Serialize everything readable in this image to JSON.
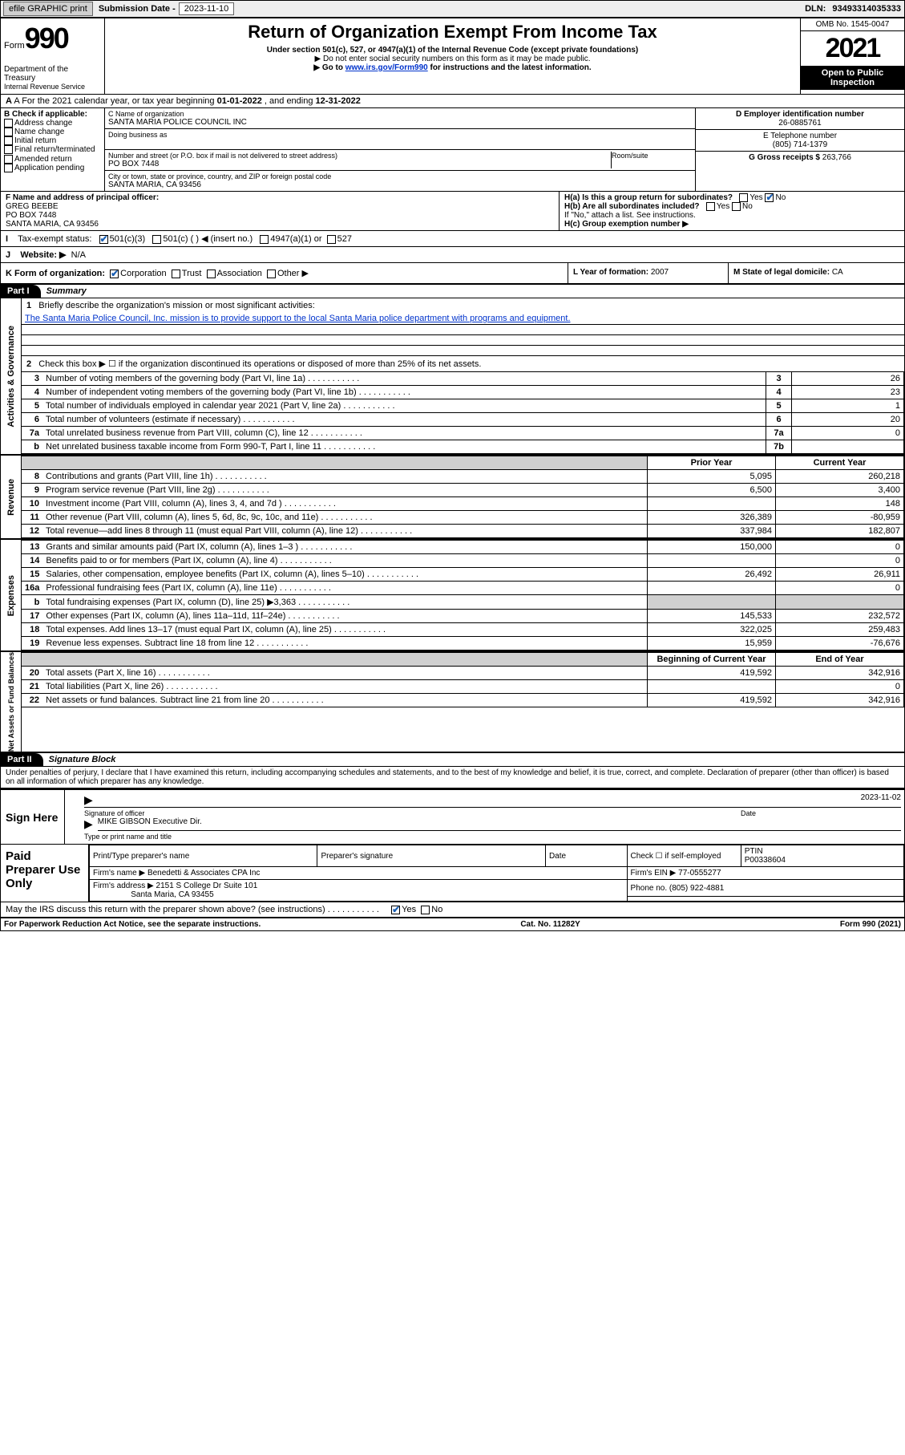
{
  "topbar": {
    "efile_label": "efile GRAPHIC print",
    "sub_date_label": "Submission Date - ",
    "sub_date": "2023-11-10",
    "dln_label": "DLN: ",
    "dln": "93493314035333"
  },
  "header": {
    "form_word": "Form",
    "form_num": "990",
    "title": "Return of Organization Exempt From Income Tax",
    "subtitle": "Under section 501(c), 527, or 4947(a)(1) of the Internal Revenue Code (except private foundations)",
    "note1": "▶ Do not enter social security numbers on this form as it may be made public.",
    "note2_pre": "▶ Go to ",
    "note2_link": "www.irs.gov/Form990",
    "note2_post": " for instructions and the latest information.",
    "omb": "OMB No. 1545-0047",
    "year": "2021",
    "open": "Open to Public Inspection",
    "dept": "Department of the Treasury",
    "irs": "Internal Revenue Service"
  },
  "a_line": {
    "pre": "A For the 2021 calendar year, or tax year beginning ",
    "begin": "01-01-2022",
    "mid": "   , and ending ",
    "end": "12-31-2022"
  },
  "b": {
    "label": "B Check if applicable:",
    "opts": [
      "Address change",
      "Name change",
      "Initial return",
      "Final return/terminated",
      "Amended return",
      "Application pending"
    ]
  },
  "c": {
    "name_label": "C Name of organization",
    "name": "SANTA MARIA POLICE COUNCIL INC",
    "dba_label": "Doing business as",
    "street_label": "Number and street (or P.O. box if mail is not delivered to street address)",
    "room_label": "Room/suite",
    "street": "PO BOX 7448",
    "city_label": "City or town, state or province, country, and ZIP or foreign postal code",
    "city": "SANTA MARIA, CA  93456"
  },
  "d": {
    "ein_label": "D Employer identification number",
    "ein": "26-0885761",
    "phone_label": "E Telephone number",
    "phone": "(805) 714-1379",
    "gross_label": "G Gross receipts $ ",
    "gross": "263,766"
  },
  "f": {
    "label": "F  Name and address of principal officer:",
    "name": "GREG BEEBE",
    "street": "PO BOX 7448",
    "city": "SANTA MARIA, CA  93456"
  },
  "h": {
    "a": "H(a)  Is this a group return for subordinates?",
    "b": "H(b)  Are all subordinates included?",
    "note": "If \"No,\" attach a list. See instructions.",
    "c": "H(c)  Group exemption number ▶",
    "yes": "Yes",
    "no": "No"
  },
  "i": {
    "label": "Tax-exempt status:",
    "o1": "501(c)(3)",
    "o2": "501(c) (   ) ◀ (insert no.)",
    "o3": "4947(a)(1) or",
    "o4": "527"
  },
  "j": {
    "label": "Website: ▶",
    "value": "N/A"
  },
  "k": {
    "label": "K Form of organization:",
    "o1": "Corporation",
    "o2": "Trust",
    "o3": "Association",
    "o4": "Other ▶",
    "l": "L Year of formation: ",
    "l_val": "2007",
    "m": "M State of legal domicile: ",
    "m_val": "CA"
  },
  "part1": {
    "bar": "Part I",
    "title": "Summary",
    "line1": "Briefly describe the organization's mission or most significant activities:",
    "mission": "The Santa Maria Police Council, Inc. mission is to provide support to the local Santa Maria police department with programs and equipment.",
    "line2": "Check this box ▶ ☐  if the organization discontinued its operations or disposed of more than 25% of its net assets.",
    "rows_gov": [
      {
        "n": "3",
        "label": "Number of voting members of the governing body (Part VI, line 1a)",
        "cell": "3",
        "val": "26"
      },
      {
        "n": "4",
        "label": "Number of independent voting members of the governing body (Part VI, line 1b)",
        "cell": "4",
        "val": "23"
      },
      {
        "n": "5",
        "label": "Total number of individuals employed in calendar year 2021 (Part V, line 2a)",
        "cell": "5",
        "val": "1"
      },
      {
        "n": "6",
        "label": "Total number of volunteers (estimate if necessary)",
        "cell": "6",
        "val": "20"
      },
      {
        "n": "7a",
        "label": "Total unrelated business revenue from Part VIII, column (C), line 12",
        "cell": "7a",
        "val": "0"
      },
      {
        "n": "b",
        "label": "Net unrelated business taxable income from Form 990-T, Part I, line 11",
        "cell": "7b",
        "val": ""
      }
    ],
    "prior": "Prior Year",
    "current": "Current Year",
    "rows_rev": [
      {
        "n": "8",
        "label": "Contributions and grants (Part VIII, line 1h)",
        "p": "5,095",
        "c": "260,218"
      },
      {
        "n": "9",
        "label": "Program service revenue (Part VIII, line 2g)",
        "p": "6,500",
        "c": "3,400"
      },
      {
        "n": "10",
        "label": "Investment income (Part VIII, column (A), lines 3, 4, and 7d )",
        "p": "",
        "c": "148"
      },
      {
        "n": "11",
        "label": "Other revenue (Part VIII, column (A), lines 5, 6d, 8c, 9c, 10c, and 11e)",
        "p": "326,389",
        "c": "-80,959"
      },
      {
        "n": "12",
        "label": "Total revenue—add lines 8 through 11 (must equal Part VIII, column (A), line 12)",
        "p": "337,984",
        "c": "182,807"
      }
    ],
    "rows_exp": [
      {
        "n": "13",
        "label": "Grants and similar amounts paid (Part IX, column (A), lines 1–3 )",
        "p": "150,000",
        "c": "0"
      },
      {
        "n": "14",
        "label": "Benefits paid to or for members (Part IX, column (A), line 4)",
        "p": "",
        "c": "0"
      },
      {
        "n": "15",
        "label": "Salaries, other compensation, employee benefits (Part IX, column (A), lines 5–10)",
        "p": "26,492",
        "c": "26,911"
      },
      {
        "n": "16a",
        "label": "Professional fundraising fees (Part IX, column (A), line 11e)",
        "p": "",
        "c": "0"
      },
      {
        "n": "b",
        "label": "Total fundraising expenses (Part IX, column (D), line 25) ▶3,363",
        "p": "__shade__",
        "c": "__shade__"
      },
      {
        "n": "17",
        "label": "Other expenses (Part IX, column (A), lines 11a–11d, 11f–24e)",
        "p": "145,533",
        "c": "232,572"
      },
      {
        "n": "18",
        "label": "Total expenses. Add lines 13–17 (must equal Part IX, column (A), line 25)",
        "p": "322,025",
        "c": "259,483"
      },
      {
        "n": "19",
        "label": "Revenue less expenses. Subtract line 18 from line 12",
        "p": "15,959",
        "c": "-76,676"
      }
    ],
    "bcy": "Beginning of Current Year",
    "eoy": "End of Year",
    "rows_net": [
      {
        "n": "20",
        "label": "Total assets (Part X, line 16)",
        "p": "419,592",
        "c": "342,916"
      },
      {
        "n": "21",
        "label": "Total liabilities (Part X, line 26)",
        "p": "",
        "c": "0"
      },
      {
        "n": "22",
        "label": "Net assets or fund balances. Subtract line 21 from line 20",
        "p": "419,592",
        "c": "342,916"
      }
    ],
    "vert_gov": "Activities & Governance",
    "vert_rev": "Revenue",
    "vert_exp": "Expenses",
    "vert_net": "Net Assets or Fund Balances"
  },
  "part2": {
    "bar": "Part II",
    "title": "Signature Block",
    "decl": "Under penalties of perjury, I declare that I have examined this return, including accompanying schedules and statements, and to the best of my knowledge and belief, it is true, correct, and complete. Declaration of preparer (other than officer) is based on all information of which preparer has any knowledge.",
    "sign_here": "Sign Here",
    "sig_officer": "Signature of officer",
    "sig_date": "Date",
    "sig_date_val": "2023-11-02",
    "officer_name": "MIKE GIBSON  Executive Dir.",
    "type_name": "Type or print name and title",
    "paid": "Paid Preparer Use Only",
    "prep_name_label": "Print/Type preparer's name",
    "prep_sig_label": "Preparer's signature",
    "date_label": "Date",
    "check_if": "Check ☐ if self-employed",
    "ptin_label": "PTIN",
    "ptin": "P00338604",
    "firm_name_label": "Firm's name      ▶ ",
    "firm_name": "Benedetti & Associates CPA Inc",
    "firm_ein_label": "Firm's EIN ▶ ",
    "firm_ein": "77-0555277",
    "firm_addr_label": "Firm's address ▶ ",
    "firm_addr1": "2151 S College Dr Suite 101",
    "firm_addr2": "Santa Maria, CA  93455",
    "firm_phone_label": "Phone no. ",
    "firm_phone": "(805) 922-4881",
    "may_irs": "May the IRS discuss this return with the preparer shown above? (see instructions)",
    "yes": "Yes",
    "no": "No"
  },
  "footer": {
    "left": "For Paperwork Reduction Act Notice, see the separate instructions.",
    "mid": "Cat. No. 11282Y",
    "right": "Form 990 (2021)"
  }
}
